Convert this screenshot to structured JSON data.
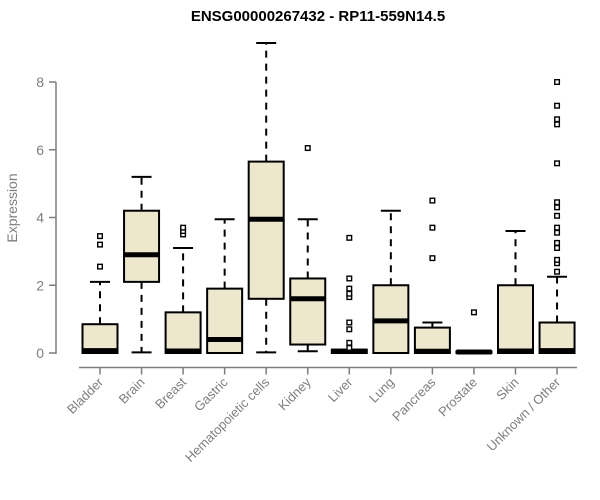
{
  "chart_data": {
    "type": "boxplot",
    "title": "ENSG00000267432 - RP11-559N14.5",
    "ylabel": "Expression",
    "xlabel": "",
    "ylim": [
      0,
      9.2
    ],
    "yticks": [
      0,
      2,
      4,
      6,
      8
    ],
    "grid": false,
    "legend": "none",
    "categories": [
      "Bladder",
      "Brain",
      "Breast",
      "Gastric",
      "Hematopoietic cells",
      "Kidney",
      "Liver",
      "Lung",
      "Pancreas",
      "Prostate",
      "Skin",
      "Unknown / Other"
    ],
    "series": [
      {
        "name": "Bladder",
        "whisker_low": 0,
        "q1": 0,
        "median": 0.07,
        "q3": 0.85,
        "whisker_high": 2.1,
        "outliers": [
          2.55,
          3.2,
          3.45
        ]
      },
      {
        "name": "Brain",
        "whisker_low": 0.02,
        "q1": 2.1,
        "median": 2.9,
        "q3": 4.2,
        "whisker_high": 5.2,
        "outliers": []
      },
      {
        "name": "Breast",
        "whisker_low": 0,
        "q1": 0,
        "median": 0.06,
        "q3": 1.2,
        "whisker_high": 3.1,
        "outliers": [
          3.5,
          3.6,
          3.7
        ]
      },
      {
        "name": "Gastric",
        "whisker_low": 0,
        "q1": 0,
        "median": 0.4,
        "q3": 1.9,
        "whisker_high": 3.95,
        "outliers": []
      },
      {
        "name": "Hematopoietic cells",
        "whisker_low": 0.02,
        "q1": 1.6,
        "median": 3.95,
        "q3": 5.65,
        "whisker_high": 9.15,
        "outliers": []
      },
      {
        "name": "Kidney",
        "whisker_low": 0.05,
        "q1": 0.25,
        "median": 1.6,
        "q3": 2.2,
        "whisker_high": 3.95,
        "outliers": [
          6.05
        ]
      },
      {
        "name": "Liver",
        "whisker_low": 0,
        "q1": 0,
        "median": 0.05,
        "q3": 0.1,
        "whisker_high": 0.1,
        "outliers": [
          0.15,
          0.3,
          0.7,
          0.9,
          1.65,
          1.75,
          1.9,
          2.2,
          3.4
        ]
      },
      {
        "name": "Lung",
        "whisker_low": 0,
        "q1": 0,
        "median": 0.95,
        "q3": 2.0,
        "whisker_high": 4.2,
        "outliers": []
      },
      {
        "name": "Pancreas",
        "whisker_low": 0,
        "q1": 0,
        "median": 0.05,
        "q3": 0.75,
        "whisker_high": 0.9,
        "outliers": [
          2.8,
          3.7,
          4.5
        ]
      },
      {
        "name": "Prostate",
        "whisker_low": 0,
        "q1": 0,
        "median": 0.03,
        "q3": 0.05,
        "whisker_high": 0.05,
        "outliers": [
          1.2
        ]
      },
      {
        "name": "Skin",
        "whisker_low": 0,
        "q1": 0,
        "median": 0.06,
        "q3": 2.0,
        "whisker_high": 3.6,
        "outliers": []
      },
      {
        "name": "Unknown / Other",
        "whisker_low": 0,
        "q1": 0,
        "median": 0.07,
        "q3": 0.9,
        "whisker_high": 2.25,
        "outliers": [
          2.4,
          2.65,
          2.75,
          3.1,
          3.25,
          3.55,
          3.7,
          4.05,
          4.3,
          4.45,
          5.6,
          6.75,
          6.9,
          7.3,
          8.0
        ]
      }
    ],
    "colors": {
      "box_fill": "#EDE7CE",
      "box_border": "#000000",
      "median": "#000000",
      "whisker": "#000000",
      "axis": "#7e7e7e",
      "tick_label": "#7e7e7e",
      "title": "#000000",
      "background": "#ffffff"
    }
  }
}
